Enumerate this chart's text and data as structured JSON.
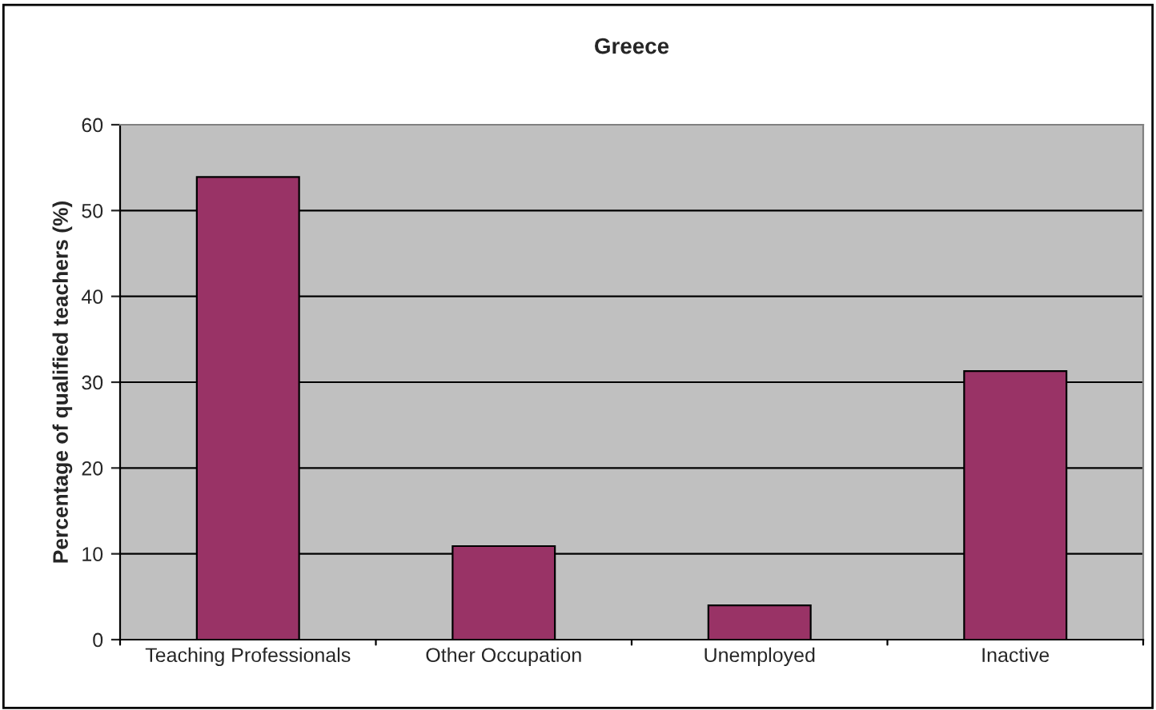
{
  "chart_data": {
    "type": "bar",
    "title": "Greece",
    "ylabel": "Percentage of qualified teachers (%)",
    "categories": [
      "Teaching Professionals",
      "Other Occupation",
      "Unemployed",
      "Inactive"
    ],
    "values": [
      53.9,
      10.9,
      4.0,
      31.3
    ],
    "color": "#993366",
    "ylim": [
      0,
      60
    ],
    "yticks": [
      0,
      10,
      20,
      30,
      40,
      50,
      60
    ],
    "grid": "y",
    "legend": false
  }
}
